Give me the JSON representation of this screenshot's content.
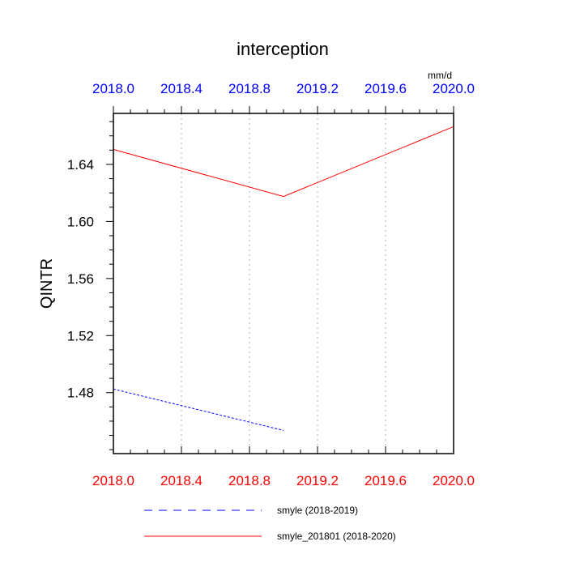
{
  "chart_data": {
    "type": "line",
    "title": "interception",
    "units": "mm/d",
    "ylabel": "QINTR",
    "xlim": [
      2018.0,
      2020.0
    ],
    "ylim": [
      1.43725,
      1.67575
    ],
    "x_ticks": [
      "2018.0",
      "2018.4",
      "2018.8",
      "2019.2",
      "2019.6",
      "2020.0"
    ],
    "x_tick_values": [
      2018.0,
      2018.4,
      2018.8,
      2019.2,
      2019.6,
      2020.0
    ],
    "y_ticks": [
      "1.48",
      "1.52",
      "1.56",
      "1.60",
      "1.64"
    ],
    "y_tick_values": [
      1.48,
      1.52,
      1.56,
      1.6,
      1.64
    ],
    "grid": "vertical dotted",
    "top_axis_color": "#0000ff",
    "bottom_axis_color": "#ff0000",
    "series": [
      {
        "name": "smyle (2018-2019)",
        "x": [
          2018.0,
          2019.0
        ],
        "y": [
          1.4825,
          1.4535
        ],
        "color": "#0000ff",
        "dash": "dashed"
      },
      {
        "name": "smyle_201801 (2018-2020)",
        "x": [
          2018.0,
          2019.0,
          2020.0
        ],
        "y": [
          1.6505,
          1.6175,
          1.6665
        ],
        "color": "#ff0000",
        "dash": "solid"
      }
    ]
  }
}
